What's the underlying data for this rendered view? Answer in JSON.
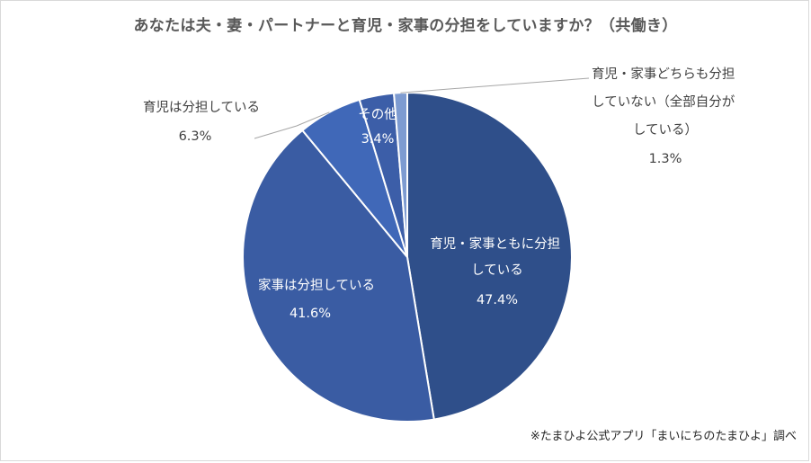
{
  "chart_data": {
    "type": "pie",
    "title": "あなたは夫・妻・パートナーと育児・家事の分担をしていますか？（共働き）",
    "slices": [
      {
        "name": "育児・家事ともに分担している",
        "label_lines": [
          "育児・家事ともに分担",
          "している"
        ],
        "value": 47.4,
        "value_label": "47.4%",
        "color": "#2f4f8a"
      },
      {
        "name": "家事は分担している",
        "label_lines": [
          "家事は分担している"
        ],
        "value": 41.6,
        "value_label": "41.6%",
        "color": "#3a5ca3"
      },
      {
        "name": "育児は分担している",
        "label_lines": [
          "育児は分担している"
        ],
        "value": 6.3,
        "value_label": "6.3%",
        "color": "#4068b8"
      },
      {
        "name": "その他",
        "label_lines": [
          "その他"
        ],
        "value": 3.4,
        "value_label": "3.4%",
        "color": "#3c5ea8"
      },
      {
        "name": "育児・家事どちらも分担していない（全部自分がしている）",
        "label_lines": [
          "育児・家事どちらも分担",
          "していない（全部自分が",
          "している）"
        ],
        "value": 1.3,
        "value_label": "1.3%",
        "color": "#7d9bd1"
      }
    ],
    "source": "※たまひよ公式アプリ「まいにちのたまひよ」調べ"
  }
}
